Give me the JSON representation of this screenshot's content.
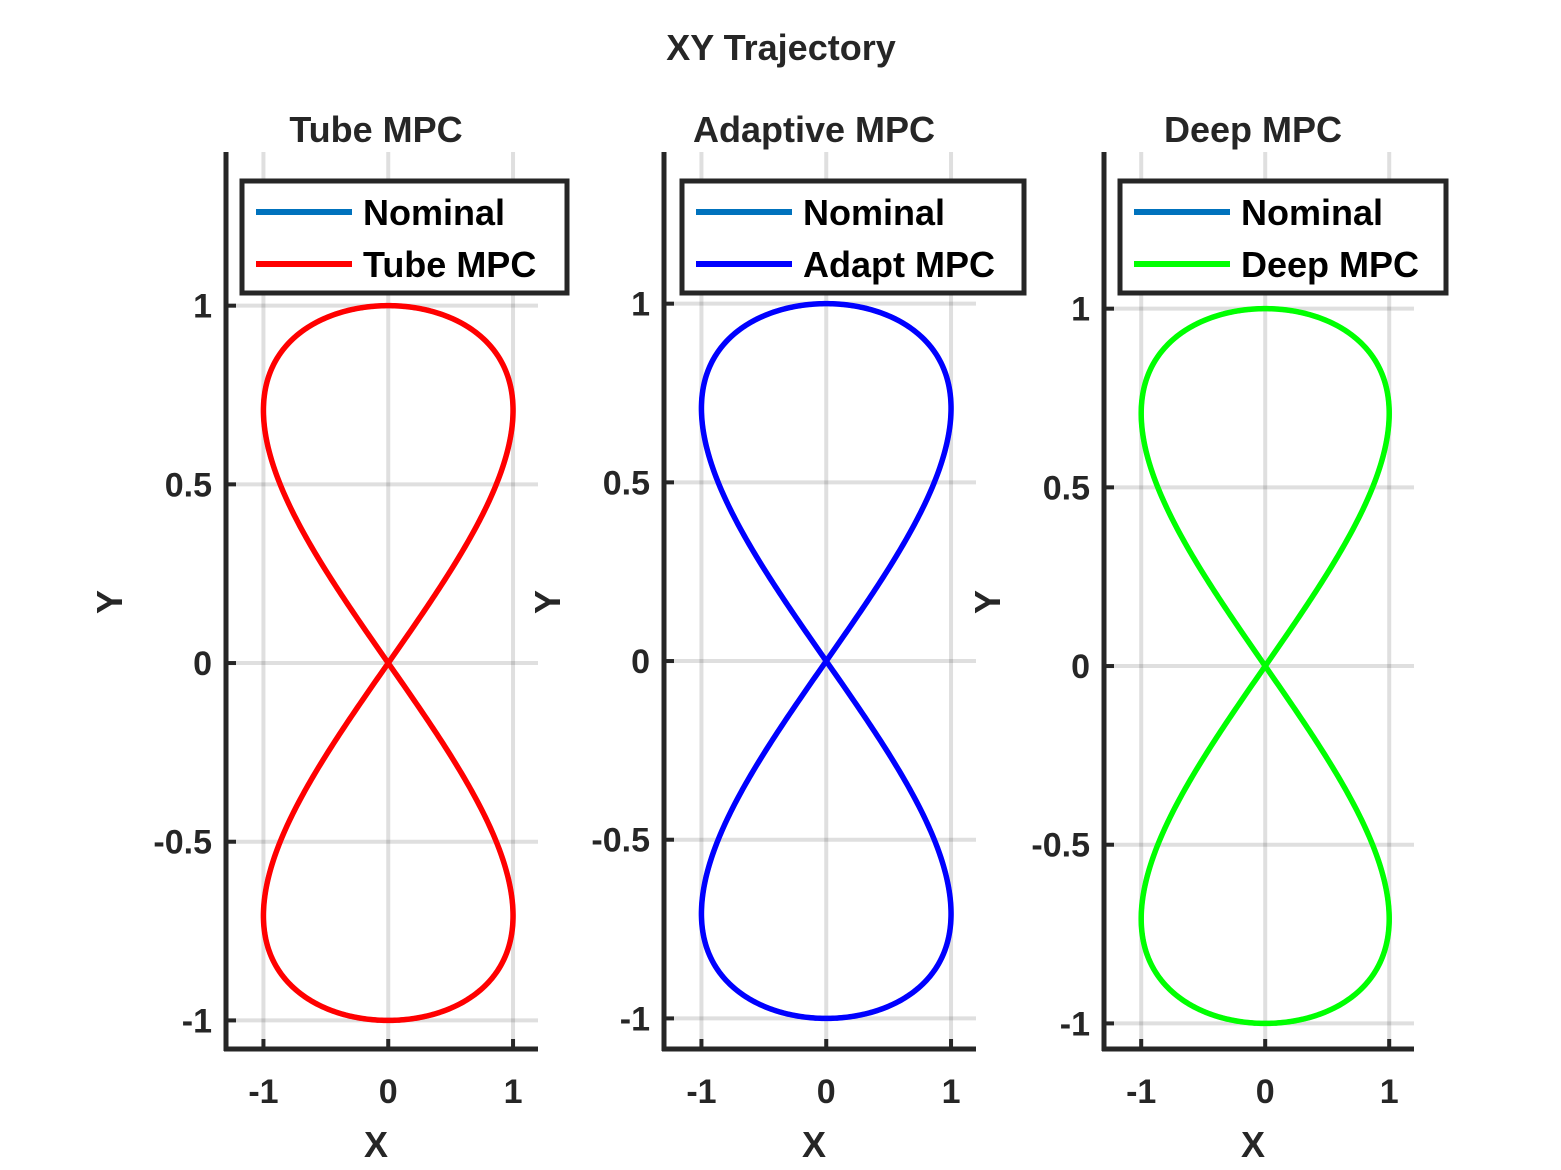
{
  "figure": {
    "suptitle": "XY Trajectory"
  },
  "chart_data": [
    {
      "type": "line",
      "title": "Tube MPC",
      "xlabel": "X",
      "ylabel": "Y",
      "xlim": [
        -1.3,
        1.2
      ],
      "ylim": [
        -1.08,
        1.43
      ],
      "xticks": [
        -1,
        0,
        1
      ],
      "xtick_labels": [
        "-1",
        "0",
        "1"
      ],
      "yticks": [
        -1,
        -0.5,
        0,
        0.5,
        1
      ],
      "ytick_labels": [
        "-1",
        "-0.5",
        "0",
        "0.5",
        "1"
      ],
      "grid": true,
      "legend_position": "top-right",
      "curve": "figure-eight: x = sin(2t), y = sin(t), t in [0, 2π]",
      "series": [
        {
          "name": "Nominal",
          "color": "#0072bd",
          "amplitude_x": 1.0,
          "amplitude_y": 1.0
        },
        {
          "name": "Tube MPC",
          "color": "#ff0000",
          "amplitude_x": 1.0,
          "amplitude_y": 1.0
        }
      ]
    },
    {
      "type": "line",
      "title": "Adaptive MPC",
      "xlabel": "X",
      "ylabel": "Y",
      "xlim": [
        -1.3,
        1.2
      ],
      "ylim": [
        -1.08,
        1.43
      ],
      "xticks": [
        -1,
        0,
        1
      ],
      "xtick_labels": [
        "-1",
        "0",
        "1"
      ],
      "yticks": [
        -1,
        -0.5,
        0,
        0.5,
        1
      ],
      "ytick_labels": [
        "-1",
        "-0.5",
        "0",
        "0.5",
        "1"
      ],
      "grid": true,
      "legend_position": "top-right",
      "curve": "figure-eight: x = sin(2t), y = sin(t), t in [0, 2π]",
      "series": [
        {
          "name": "Nominal",
          "color": "#0072bd",
          "amplitude_x": 1.0,
          "amplitude_y": 1.0
        },
        {
          "name": "Adapt MPC",
          "color": "#0000ff",
          "amplitude_x": 1.0,
          "amplitude_y": 1.0
        }
      ]
    },
    {
      "type": "line",
      "title": "Deep MPC",
      "xlabel": "X",
      "ylabel": "Y",
      "xlim": [
        -1.3,
        1.2
      ],
      "ylim": [
        -1.08,
        1.43
      ],
      "xticks": [
        -1,
        0,
        1
      ],
      "xtick_labels": [
        "-1",
        "0",
        "1"
      ],
      "yticks": [
        -1,
        -0.5,
        0,
        0.5,
        1
      ],
      "ytick_labels": [
        "-1",
        "-0.5",
        "0",
        "0.5",
        "1"
      ],
      "grid": true,
      "legend_position": "top-right",
      "curve": "figure-eight: x = sin(2t), y = sin(t), t in [0, 2π]",
      "series": [
        {
          "name": "Nominal",
          "color": "#0072bd",
          "amplitude_x": 1.0,
          "amplitude_y": 1.0
        },
        {
          "name": "Deep MPC",
          "color": "#00ff00",
          "amplitude_x": 1.0,
          "amplitude_y": 1.0
        }
      ]
    }
  ]
}
